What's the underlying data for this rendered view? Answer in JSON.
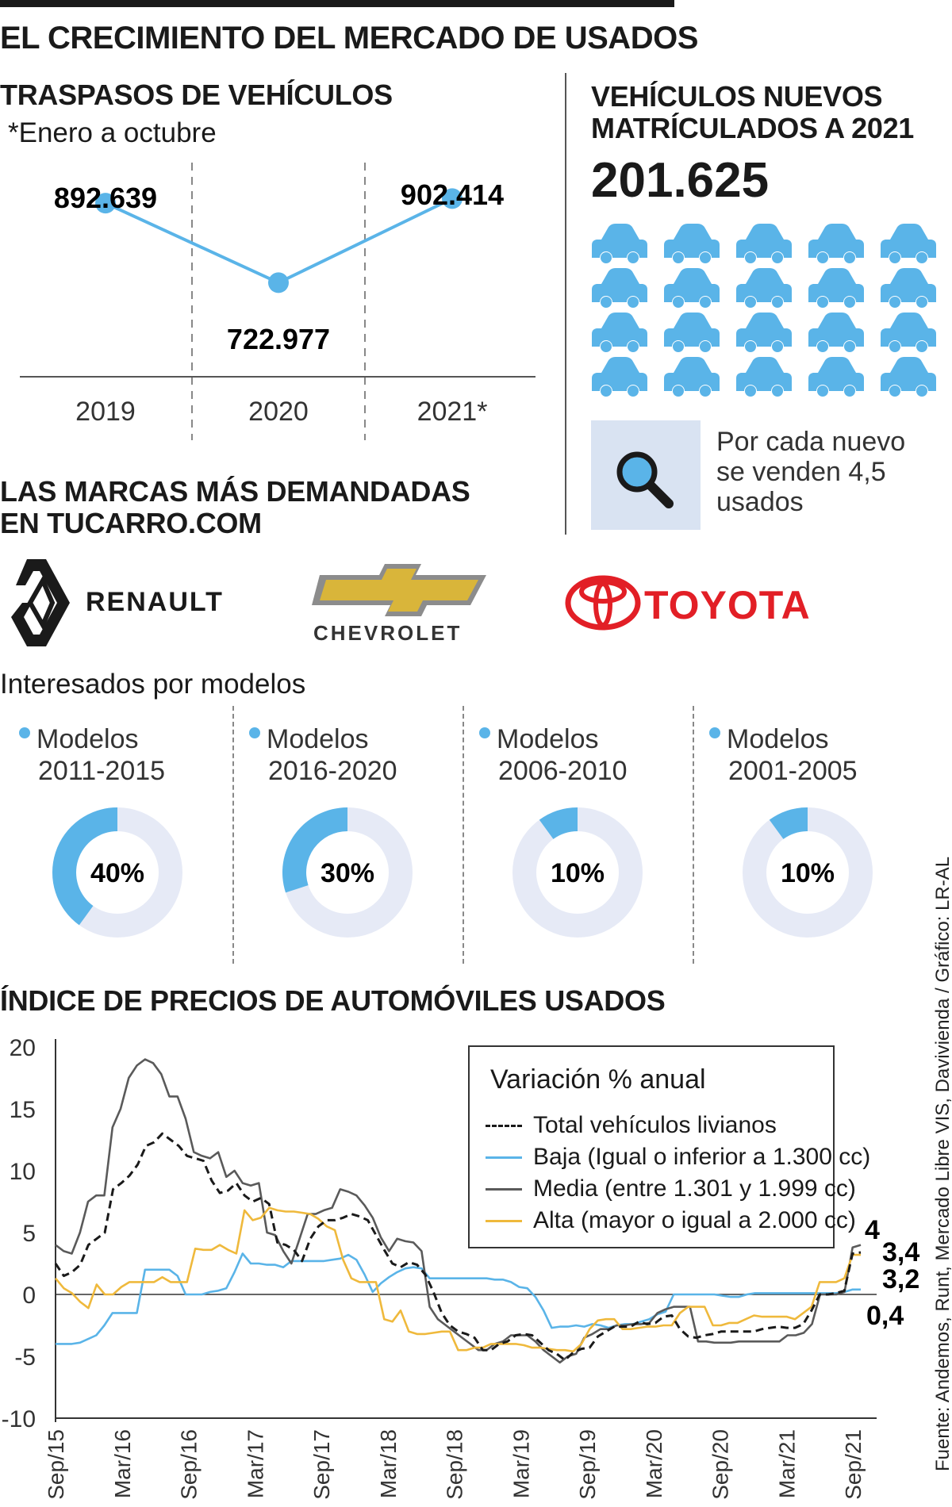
{
  "title": "EL CRECIMIENTO DEL MERCADO DE USADOS",
  "traspasos": {
    "title": "TRASPASOS DE VEHÍCULOS",
    "subtitle": "*Enero a octubre",
    "labels": [
      "892.639",
      "722.977",
      "902.414"
    ],
    "years": [
      "2019",
      "2020",
      "2021*"
    ]
  },
  "nuevos": {
    "title_line1": "VEHÍCULOS NUEVOS",
    "title_line2": "MATRÍCULADOS A 2021",
    "value": "201.625",
    "car_icon_count": 20,
    "info_text": "Por cada nuevo se venden 4,5 usados"
  },
  "marcas": {
    "title_line1": "LAS MARCAS MÁS DEMANDADAS",
    "title_line2": "EN TUCARRO.COM",
    "brands": [
      "RENAULT",
      "CHEVROLET",
      "TOYOTA"
    ]
  },
  "interesados": {
    "title": "Interesados por modelos",
    "items": [
      {
        "line1": "Modelos",
        "line2": "2011-2015",
        "value": "40%"
      },
      {
        "line1": "Modelos",
        "line2": "2016-2020",
        "value": "30%"
      },
      {
        "line1": "Modelos",
        "line2": "2006-2010",
        "value": "10%"
      },
      {
        "line1": "Modelos",
        "line2": "2001-2005",
        "value": "10%"
      }
    ]
  },
  "indice": {
    "title": "ÍNDICE DE PRECIOS DE AUTOMÓVILES USADOS",
    "legend_title": "Variación % anual",
    "end_labels": [
      "4",
      "3,4",
      "3,2",
      "0,4"
    ]
  },
  "source": "Fuente: Andemos, Runt, Mercado Libre VIS, Davivienda / Gráfico: LR-AL",
  "colors": {
    "accent_blue": "#5ab4e8",
    "donut_bg": "#e6eaf6",
    "media_gray": "#5a5a5a",
    "alta_yellow": "#efb93c",
    "toyota_red": "#e21f26",
    "chevrolet_gold": "#d9b53a"
  },
  "chart_data": [
    {
      "type": "line",
      "x": [
        "2019",
        "2020",
        "2021*"
      ],
      "values": [
        892639,
        722977,
        902414
      ]
    },
    {
      "type": "pie",
      "categories": [
        "Modelos 2011-2015",
        "Modelos 2016-2020",
        "Modelos 2006-2010",
        "Modelos 2001-2005"
      ],
      "values": [
        40,
        30,
        10,
        10
      ]
    },
    {
      "type": "line",
      "x_tick_labels": [
        "Sep/15",
        "Mar/16",
        "Sep/16",
        "Mar/17",
        "Sep/17",
        "Mar/18",
        "Sep/18",
        "Mar/19",
        "Sep/19",
        "Mar/20",
        "Sep/20",
        "Mar/21",
        "Sep/21"
      ],
      "y_tick_labels": [
        "20",
        "15",
        "10",
        "5",
        "0",
        "-5",
        "-10"
      ],
      "ylim": [
        -10,
        20
      ],
      "legend_title": "Variación % anual",
      "series": [
        {
          "name": "Total vehículos livianos",
          "color": "#1a1a1a",
          "style": "dashed",
          "values": [
            2.5,
            1.5,
            1.8,
            2.4,
            4,
            4.5,
            5,
            8.5,
            9,
            9.6,
            10.5,
            12,
            12.3,
            13,
            12.5,
            12,
            11.2,
            11,
            10.8,
            9.2,
            8.2,
            8.4,
            9,
            8,
            7.5,
            7.8,
            7.3,
            4.2,
            4,
            3.6,
            2.7,
            4.5,
            5.5,
            6,
            6,
            6.2,
            6.5,
            6.3,
            6,
            4.8,
            3.6,
            2.5,
            2.2,
            2.6,
            2.4,
            1.6,
            0.2,
            -1.5,
            -2.5,
            -3,
            -3.2,
            -3.5,
            -4.5,
            -4.5,
            -4,
            -3.8,
            -3.3,
            -3.2,
            -3.3,
            -3.9,
            -4.5,
            -4.8,
            -5.3,
            -4.7,
            -4.4,
            -4.3,
            -3.4,
            -3,
            -2.6,
            -2.6,
            -2.6,
            -2.2,
            -2.4,
            -2.3,
            -1.8,
            -1.7,
            -2.8,
            -3.4,
            -3.5,
            -3.3,
            -3.2,
            -3,
            -3,
            -3,
            -3,
            -3,
            -2.8,
            -2.7,
            -2.6,
            -2.7,
            -2.7,
            -2.4,
            -1.3,
            0,
            0,
            0.1,
            0.3,
            3.3,
            3.4
          ]
        },
        {
          "name": "Baja (Igual o inferior a 1.300 cc)",
          "color": "#5ab4e8",
          "style": "solid",
          "values": [
            -4,
            -4,
            -4,
            -3.9,
            -3.6,
            -3.3,
            -2.5,
            -1.5,
            -1.5,
            -1.5,
            -1.5,
            2,
            2,
            2,
            2,
            1.5,
            0,
            0,
            0,
            0.2,
            0.3,
            0.5,
            1.8,
            3.3,
            2.5,
            2.5,
            2.4,
            2.4,
            2.2,
            2.7,
            2.7,
            2.7,
            2.7,
            2.7,
            2.8,
            2.9,
            3.2,
            2.8,
            1.6,
            0.2,
            0.9,
            1.4,
            1.8,
            2.1,
            2.2,
            2.1,
            1.3,
            1.3,
            1.3,
            1.3,
            1.3,
            1.3,
            1.3,
            1.3,
            1.2,
            1.2,
            1,
            0.6,
            0.5,
            -0.2,
            -1.3,
            -2.7,
            -2.6,
            -2.6,
            -2.5,
            -2.6,
            -2.4,
            -2.5,
            -2.7,
            -2.5,
            -2.4,
            -2.4,
            -2.2,
            -2,
            -1.6,
            -1.4,
            0,
            0,
            0,
            0,
            0,
            0,
            -0.1,
            -0.2,
            -0.2,
            0,
            0.1,
            0.1,
            0.1,
            0.1,
            0.1,
            0.1,
            0.1,
            0.1,
            0.1,
            0.1,
            0.1,
            0.2,
            0.4,
            0.4
          ]
        },
        {
          "name": "Media (entre 1.301 y 1.999 cc)",
          "color": "#5a5a5a",
          "style": "solid",
          "values": [
            4,
            3.5,
            3.3,
            5,
            7.5,
            8,
            8,
            13.5,
            15,
            17.5,
            18.5,
            19,
            18.7,
            17.8,
            16,
            16,
            14.2,
            11.5,
            11.2,
            11,
            11.5,
            9.5,
            10,
            9,
            8.8,
            9,
            5,
            4.8,
            3.5,
            2.5,
            4.5,
            6.5,
            6.5,
            6.8,
            7,
            8.5,
            8.3,
            8,
            7.2,
            6.2,
            4.6,
            3.5,
            4.5,
            4.3,
            4.2,
            3.5,
            -1,
            -2,
            -2.5,
            -3,
            -3.5,
            -4,
            -4.5,
            -4.5,
            -4,
            -3.8,
            -3.3,
            -3.3,
            -3.3,
            -3.8,
            -4.5,
            -5,
            -5.5,
            -5,
            -4.8,
            -3.5,
            -3.2,
            -2.8,
            -2.8,
            -2.5,
            -2.5,
            -2.4,
            -2.4,
            -2.3,
            -1.5,
            -1.2,
            -1,
            -1,
            -1,
            -3.8,
            -3.8,
            -3.9,
            -3.9,
            -3.9,
            -3.8,
            -3.8,
            -3.8,
            -3.8,
            -3.8,
            -3.8,
            -3.3,
            -3.3,
            -3.1,
            -2.4,
            0,
            0,
            0,
            0.2,
            3.8,
            4
          ]
        },
        {
          "name": "Alta (mayor o igual a 2.000 cc)",
          "color": "#efb93c",
          "style": "solid",
          "values": [
            1.3,
            0.5,
            0.1,
            -0.6,
            -1.1,
            0.8,
            0,
            0,
            0.6,
            1,
            1,
            1,
            1,
            1.4,
            1,
            1,
            1,
            3.7,
            3.6,
            3.6,
            4,
            3.6,
            3.3,
            6.8,
            6,
            6.2,
            7,
            6.8,
            6.7,
            6.7,
            6.6,
            6.5,
            6.1,
            5.5,
            5.2,
            2.8,
            1.3,
            1,
            1,
            1,
            -2,
            -2.2,
            -1.3,
            -3,
            -3.2,
            -3.2,
            -3.1,
            -3,
            -3,
            -4.5,
            -4.5,
            -4.3,
            -4.3,
            -4,
            -4,
            -4,
            -4,
            -4.1,
            -4.3,
            -4.3,
            -4.4,
            -4.5,
            -4.5,
            -4.6,
            -4,
            -2.8,
            -2.1,
            -2,
            -2,
            -2.8,
            -2.8,
            -2.7,
            -2.6,
            -2.6,
            -2.5,
            -2.5,
            -1.5,
            -1,
            -1,
            -1,
            -2.5,
            -2.5,
            -2.3,
            -2.3,
            -2,
            -1.7,
            -1.8,
            -1.8,
            -1.8,
            -1.8,
            -2,
            -1.5,
            -1,
            1,
            1,
            1,
            1.3,
            3.2,
            3.2
          ]
        }
      ]
    }
  ]
}
